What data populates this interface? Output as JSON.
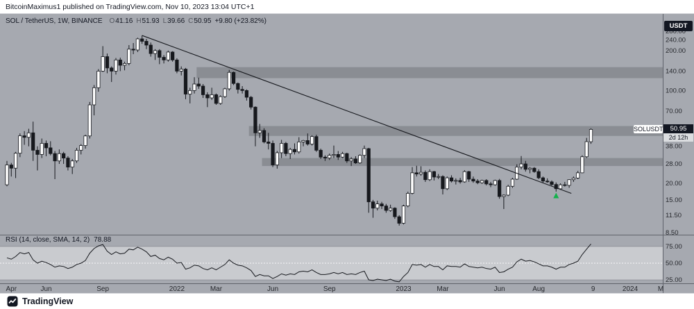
{
  "header": {
    "attribution": "BitcoinMaximus1 published on TradingView.com, Nov 10, 2023 13:04 UTC+1"
  },
  "legend": {
    "symbol": "SOL / TetherUS, 1W, BINANCE",
    "ohlc": [
      {
        "label": "O",
        "value": "41.16"
      },
      {
        "label": "H",
        "value": "51.93"
      },
      {
        "label": "L",
        "value": "39.66"
      },
      {
        "label": "C",
        "value": "50.95"
      }
    ],
    "change": "+9.80 (+23.82%)"
  },
  "rsi_legend": {
    "label": "RSI (14, close, SMA, 14, 2)",
    "value": "78.88"
  },
  "price_axis": {
    "currency_label": "USDT",
    "ticks": [
      "280.00",
      "240.00",
      "200.00",
      "140.00",
      "100.00",
      "70.00",
      "38.00",
      "28.00",
      "20.00",
      "15.00",
      "11.50",
      "8.50"
    ],
    "symbol_label": "SOLUSDT",
    "current_price_label": "50.95",
    "countdown_label": "2d 12h"
  },
  "rsi_axis": {
    "ticks": [
      "75.00",
      "50.00",
      "25.00"
    ]
  },
  "time_axis": {
    "ticks": [
      {
        "label": "Apr",
        "idx": 1
      },
      {
        "label": "Jun",
        "idx": 9
      },
      {
        "label": "Sep",
        "idx": 22
      },
      {
        "label": "2022",
        "idx": 39
      },
      {
        "label": "Mar",
        "idx": 48
      },
      {
        "label": "Jun",
        "idx": 61
      },
      {
        "label": "Sep",
        "idx": 74
      },
      {
        "label": "2023",
        "idx": 91
      },
      {
        "label": "Mar",
        "idx": 100
      },
      {
        "label": "Jun",
        "idx": 113
      },
      {
        "label": "Aug",
        "idx": 122
      },
      {
        "label": "9",
        "idx": 134.5
      },
      {
        "label": "2024",
        "idx": 143
      },
      {
        "label": "M",
        "idx": 150
      }
    ]
  },
  "footer": {
    "brand": "TradingView"
  },
  "colors": {
    "background_gray": "#a6a9b0",
    "panel_white": "#ffffff",
    "badge_dark": "#131722",
    "candle_dark": "#16181d",
    "candle_up_fill": "#ffffff",
    "zone_gray": "rgba(104,107,114,0.45)",
    "rsi_band_fill": "rgba(255,255,255,0.40)",
    "marker_green": "#13b24b",
    "separator": "#5f626a",
    "tick_text": "#26282d"
  },
  "chart_data": {
    "type": "candlestick",
    "title": "SOL / TetherUS, 1W, BINANCE",
    "timeframe": "1W",
    "scale": "log",
    "price_ylim": [
      8.2,
      378
    ],
    "x_range_labels": [
      "Apr 2021",
      "Nov 2023"
    ],
    "legend_position": "top-left",
    "grid": false,
    "candles_ohlc": [
      [
        19.5,
        29.5,
        19.0,
        27.5
      ],
      [
        27.5,
        28.5,
        22.5,
        26.0
      ],
      [
        26.0,
        34.5,
        21.9,
        33.7
      ],
      [
        33.7,
        47.5,
        31.5,
        45.6
      ],
      [
        45.6,
        49.5,
        39.0,
        44.4
      ],
      [
        44.4,
        51.5,
        38.0,
        48.0
      ],
      [
        48.0,
        58.3,
        29.5,
        35.5
      ],
      [
        35.5,
        38.0,
        25.0,
        33.0
      ],
      [
        33.0,
        43.5,
        31.0,
        40.0
      ],
      [
        40.0,
        42.0,
        32.0,
        37.0
      ],
      [
        37.0,
        41.5,
        32.5,
        33.5
      ],
      [
        33.5,
        35.0,
        21.5,
        29.5
      ],
      [
        29.5,
        36.0,
        28.0,
        33.5
      ],
      [
        33.5,
        34.5,
        28.0,
        31.0
      ],
      [
        31.0,
        32.0,
        25.0,
        26.5
      ],
      [
        26.5,
        30.5,
        23.5,
        29.5
      ],
      [
        29.5,
        37.0,
        28.5,
        35.5
      ],
      [
        35.5,
        39.5,
        33.0,
        38.5
      ],
      [
        38.5,
        46.5,
        36.5,
        45.5
      ],
      [
        45.5,
        82.0,
        43.5,
        78.0
      ],
      [
        78.0,
        110.0,
        65.0,
        105.0
      ],
      [
        105.0,
        145.0,
        98.0,
        140.0
      ],
      [
        140.0,
        216.0,
        138.0,
        180.0
      ],
      [
        180.0,
        190.0,
        135.0,
        148.0
      ],
      [
        148.0,
        152.0,
        116.0,
        140.0
      ],
      [
        140.0,
        176.0,
        132.0,
        170.0
      ],
      [
        170.0,
        177.0,
        140.0,
        155.0
      ],
      [
        155.0,
        165.0,
        142.0,
        160.0
      ],
      [
        160.0,
        220.0,
        155.0,
        205.0
      ],
      [
        205.0,
        228.0,
        188.0,
        202.0
      ],
      [
        202.0,
        250.0,
        195.0,
        245.0
      ],
      [
        245.0,
        260.0,
        225.0,
        235.0
      ],
      [
        235.0,
        245.0,
        205.0,
        220.0
      ],
      [
        220.0,
        230.0,
        180.0,
        190.0
      ],
      [
        190.0,
        205.0,
        170.0,
        200.0
      ],
      [
        200.0,
        205.0,
        158.0,
        178.0
      ],
      [
        178.0,
        185.0,
        160.0,
        170.0
      ],
      [
        170.0,
        200.0,
        165.0,
        195.0
      ],
      [
        195.0,
        198.0,
        165.0,
        170.0
      ],
      [
        170.0,
        175.0,
        135.0,
        140.0
      ],
      [
        140.0,
        152.0,
        130.0,
        145.0
      ],
      [
        145.0,
        148.0,
        86.0,
        94.0
      ],
      [
        94.0,
        105.0,
        80.0,
        100.0
      ],
      [
        100.0,
        126.0,
        95.0,
        112.0
      ],
      [
        112.0,
        125.0,
        103.0,
        108.0
      ],
      [
        108.0,
        112.0,
        88.0,
        93.0
      ],
      [
        93.0,
        97.0,
        75.0,
        88.0
      ],
      [
        88.0,
        105.0,
        85.0,
        93.0
      ],
      [
        93.0,
        95.0,
        78.0,
        80.0
      ],
      [
        80.0,
        92.0,
        78.0,
        90.0
      ],
      [
        90.0,
        105.0,
        88.0,
        103.0
      ],
      [
        103.0,
        143.0,
        100.0,
        137.0
      ],
      [
        137.0,
        139.0,
        110.0,
        113.0
      ],
      [
        113.0,
        115.0,
        95.0,
        102.0
      ],
      [
        102.0,
        108.0,
        95.0,
        100.0
      ],
      [
        100.0,
        102.0,
        84.0,
        89.0
      ],
      [
        89.0,
        91.0,
        72.0,
        75.0
      ],
      [
        75.0,
        76.0,
        38.0,
        48.0
      ],
      [
        48.0,
        56.0,
        44.0,
        50.0
      ],
      [
        50.0,
        52.0,
        40.0,
        41.0
      ],
      [
        41.0,
        48.0,
        36.0,
        40.0
      ],
      [
        40.0,
        42.0,
        26.5,
        27.5
      ],
      [
        27.5,
        35.0,
        25.8,
        34.0
      ],
      [
        34.0,
        42.5,
        31.0,
        40.0
      ],
      [
        40.0,
        41.0,
        32.0,
        33.5
      ],
      [
        33.5,
        37.0,
        30.5,
        36.0
      ],
      [
        36.0,
        40.0,
        33.0,
        34.5
      ],
      [
        34.5,
        44.5,
        33.5,
        41.0
      ],
      [
        41.0,
        42.5,
        38.0,
        42.0
      ],
      [
        42.0,
        47.5,
        38.5,
        39.5
      ],
      [
        39.5,
        46.0,
        38.5,
        45.0
      ],
      [
        45.0,
        46.5,
        34.5,
        35.5
      ],
      [
        35.5,
        36.5,
        30.5,
        31.5
      ],
      [
        31.5,
        32.5,
        29.5,
        31.0
      ],
      [
        31.0,
        33.5,
        30.0,
        32.5
      ],
      [
        32.5,
        38.5,
        31.0,
        33.0
      ],
      [
        33.0,
        35.0,
        30.0,
        31.5
      ],
      [
        31.5,
        34.5,
        31.0,
        33.5
      ],
      [
        33.5,
        34.0,
        28.5,
        29.5
      ],
      [
        29.5,
        31.5,
        27.0,
        30.5
      ],
      [
        30.5,
        32.0,
        28.0,
        28.5
      ],
      [
        28.5,
        33.0,
        28.0,
        32.5
      ],
      [
        32.5,
        38.5,
        31.0,
        36.5
      ],
      [
        36.5,
        37.0,
        12.0,
        14.5
      ],
      [
        14.5,
        15.0,
        11.0,
        13.0
      ],
      [
        13.0,
        14.8,
        12.5,
        14.0
      ],
      [
        14.0,
        14.5,
        12.8,
        13.5
      ],
      [
        13.5,
        14.0,
        12.0,
        12.5
      ],
      [
        12.5,
        13.8,
        12.2,
        13.0
      ],
      [
        13.0,
        13.2,
        10.8,
        11.2
      ],
      [
        11.2,
        11.5,
        9.6,
        10.0
      ],
      [
        10.0,
        13.8,
        9.8,
        13.5
      ],
      [
        13.5,
        17.3,
        13.2,
        16.8
      ],
      [
        16.8,
        26.5,
        16.5,
        24.0
      ],
      [
        24.0,
        27.1,
        22.5,
        23.5
      ],
      [
        23.5,
        26.9,
        22.8,
        24.2
      ],
      [
        24.2,
        25.0,
        20.5,
        21.3
      ],
      [
        21.3,
        25.5,
        20.8,
        24.5
      ],
      [
        24.5,
        24.8,
        21.0,
        22.3
      ],
      [
        22.3,
        23.5,
        21.5,
        22.5
      ],
      [
        22.5,
        23.0,
        16.5,
        18.2
      ],
      [
        18.2,
        22.5,
        17.8,
        22.0
      ],
      [
        22.0,
        23.0,
        20.3,
        20.8
      ],
      [
        20.8,
        21.8,
        19.6,
        21.0
      ],
      [
        21.0,
        22.0,
        19.9,
        20.5
      ],
      [
        20.5,
        25.1,
        20.2,
        24.5
      ],
      [
        24.5,
        24.8,
        20.5,
        21.5
      ],
      [
        21.5,
        22.5,
        20.2,
        20.8
      ],
      [
        20.8,
        21.5,
        19.7,
        20.2
      ],
      [
        20.2,
        21.3,
        19.8,
        21.0
      ],
      [
        21.0,
        21.5,
        19.3,
        19.8
      ],
      [
        19.8,
        20.5,
        18.7,
        19.5
      ],
      [
        19.5,
        21.3,
        19.2,
        21.0
      ],
      [
        21.0,
        21.6,
        15.3,
        15.9
      ],
      [
        15.9,
        16.5,
        12.8,
        16.3
      ],
      [
        16.3,
        19.5,
        16.0,
        19.0
      ],
      [
        19.0,
        22.0,
        18.5,
        21.5
      ],
      [
        21.5,
        27.8,
        21.2,
        26.5
      ],
      [
        26.5,
        32.1,
        25.5,
        28.0
      ],
      [
        28.0,
        29.5,
        24.5,
        25.5
      ],
      [
        25.5,
        26.5,
        23.8,
        26.0
      ],
      [
        26.0,
        26.5,
        24.0,
        24.5
      ],
      [
        24.5,
        25.5,
        21.5,
        22.0
      ],
      [
        22.0,
        22.5,
        20.0,
        20.8
      ],
      [
        20.8,
        21.8,
        20.2,
        20.5
      ],
      [
        20.5,
        21.0,
        19.2,
        19.6
      ],
      [
        19.6,
        20.3,
        17.3,
        18.2
      ],
      [
        18.2,
        20.0,
        17.9,
        19.5
      ],
      [
        19.5,
        20.5,
        18.9,
        19.3
      ],
      [
        19.3,
        21.5,
        18.5,
        21.3
      ],
      [
        21.3,
        22.5,
        20.5,
        21.9
      ],
      [
        21.9,
        24.8,
        21.5,
        24.0
      ],
      [
        24.0,
        32.5,
        23.8,
        31.7
      ],
      [
        31.7,
        44.0,
        31.0,
        41.2
      ],
      [
        41.16,
        51.93,
        39.66,
        50.95
      ]
    ],
    "zones": [
      {
        "from_idx": 44,
        "price_top": 150,
        "price_bottom": 124
      },
      {
        "from_idx": 56,
        "price_top": 54,
        "price_bottom": 45.5
      },
      {
        "from_idx": 59,
        "price_top": 31,
        "price_bottom": 27
      }
    ],
    "trendline": {
      "from_idx": 31,
      "from_price": 260,
      "to_idx": 129.5,
      "to_price": 16.8
    },
    "marker": {
      "shape": "up-arrow",
      "idx": 126,
      "price": 16.2,
      "color": "#13b24b"
    },
    "rsi": {
      "type": "line",
      "label": "RSI (14, close, SMA, 14, 2)",
      "current": 78.88,
      "band": [
        25,
        75
      ],
      "midline": 50,
      "values": [
        58,
        56,
        60,
        66,
        64,
        66,
        55,
        50,
        53,
        51,
        48,
        44,
        46,
        45,
        42,
        44,
        48,
        50,
        54,
        65,
        72,
        76,
        78,
        68,
        63,
        67,
        64,
        65,
        71,
        70,
        74,
        71,
        67,
        60,
        62,
        57,
        55,
        59,
        56,
        50,
        51,
        41,
        43,
        47,
        46,
        42,
        40,
        43,
        40,
        44,
        48,
        55,
        50,
        47,
        46,
        43,
        39,
        30,
        33,
        31,
        31,
        27,
        30,
        34,
        32,
        34,
        33,
        37,
        38,
        37,
        40,
        36,
        33,
        33,
        34,
        36,
        34,
        36,
        33,
        34,
        33,
        36,
        38,
        25,
        24,
        26,
        25,
        24,
        26,
        23,
        22,
        30,
        36,
        48,
        47,
        48,
        44,
        48,
        45,
        45,
        40,
        46,
        45,
        45,
        44,
        49,
        45,
        44,
        43,
        44,
        42,
        41,
        44,
        36,
        37,
        41,
        44,
        52,
        56,
        53,
        54,
        52,
        49,
        46,
        46,
        44,
        41,
        44,
        44,
        48,
        50,
        53,
        63,
        71,
        78.88
      ]
    }
  }
}
